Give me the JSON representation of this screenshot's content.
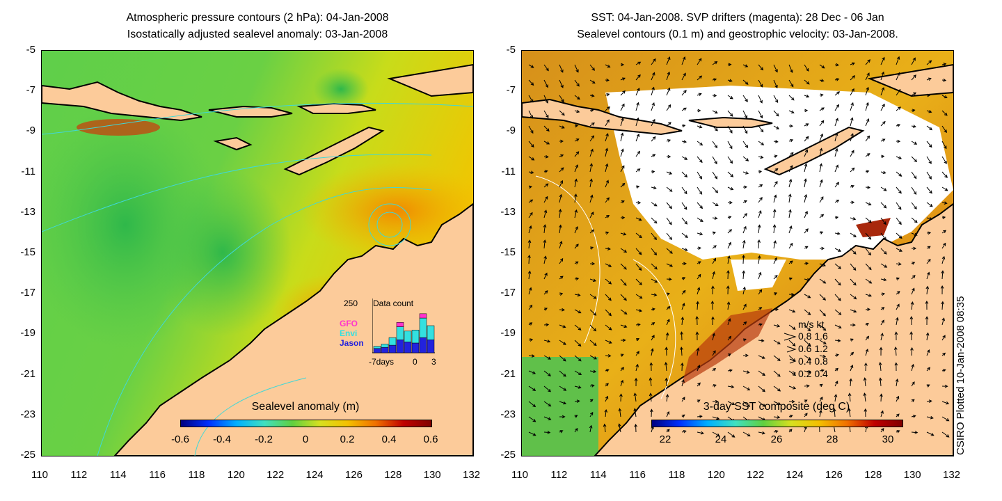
{
  "left_panel": {
    "title_line1": "Atmospheric pressure contours (2 hPa): 04-Jan-2008",
    "title_line2": "Isostatically adjusted sealevel anomaly: 03-Jan-2008",
    "colorbar_title": "Sealevel anomaly (m)",
    "colorbar_ticks": [
      "-0.6",
      "-0.4",
      "-0.2",
      "0",
      "0.2",
      "0.4",
      "0.6"
    ],
    "histogram": {
      "y_max_label": "250",
      "title": "Data count",
      "legend": [
        {
          "name": "GFO",
          "color": "#ff33cc"
        },
        {
          "name": "Envi",
          "color": "#33e0e0"
        },
        {
          "name": "Jason",
          "color": "#2222dd"
        }
      ],
      "x_labels": [
        "-7days",
        "0",
        "3"
      ],
      "counts": [
        {
          "jason": 20,
          "envi": 10,
          "gfo": 0
        },
        {
          "jason": 25,
          "envi": 15,
          "gfo": 0
        },
        {
          "jason": 35,
          "envi": 35,
          "gfo": 0
        },
        {
          "jason": 60,
          "envi": 60,
          "gfo": 20
        },
        {
          "jason": 50,
          "envi": 50,
          "gfo": 0
        },
        {
          "jason": 45,
          "envi": 60,
          "gfo": 0
        },
        {
          "jason": 70,
          "envi": 90,
          "gfo": 20
        },
        {
          "jason": 60,
          "envi": 65,
          "gfo": 0
        }
      ]
    }
  },
  "right_panel": {
    "title_line1": "SST: 04-Jan-2008. SVP drifters (magenta): 28 Dec - 06 Jan",
    "title_line2": "Sealevel contours (0.1 m) and geostrophic velocity: 03-Jan-2008.",
    "colorbar_title": "3-day SST composite (deg C)",
    "colorbar_ticks": [
      "22",
      "24",
      "26",
      "28",
      "30"
    ],
    "speed_legend": {
      "header": "m/s  kt",
      "rows": [
        "0.8  1.6",
        "0.6  1.2",
        "0.4  0.8",
        "0.2  0.4"
      ]
    }
  },
  "axes": {
    "y_ticks": [
      "-5",
      "-7",
      "-9",
      "-11",
      "-13",
      "-15",
      "-17",
      "-19",
      "-21",
      "-23",
      "-25"
    ],
    "x_ticks": [
      "110",
      "112",
      "114",
      "116",
      "118",
      "120",
      "122",
      "124",
      "126",
      "128",
      "130",
      "132"
    ]
  },
  "side_note": "CSIRO Plotted 10-Jan-2008 08:35",
  "colors": {
    "land": "#fccb9a",
    "ocean_green": "#4fc64a",
    "ocean_yellow": "#f4d400",
    "coast": "#000000",
    "contour": "#3fd8d8",
    "sst_orange": "#e07a1a",
    "cloud": "#ffffff"
  }
}
